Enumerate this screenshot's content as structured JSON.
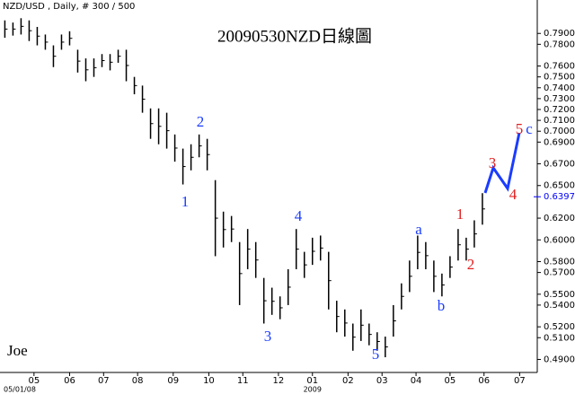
{
  "chart_data": {
    "type": "ohlc",
    "title": "20090530NZD日線圖",
    "subtitle": "NZD/USD , Daily, # 300 / 500",
    "author": "Joe",
    "x": [
      3,
      8,
      13,
      18,
      23,
      28,
      33,
      38,
      43,
      48,
      53,
      58,
      63,
      68,
      73,
      78,
      83,
      88,
      93,
      98,
      103,
      108,
      113,
      118,
      123,
      128,
      133,
      138,
      143,
      148,
      153,
      158,
      163,
      168,
      173,
      178,
      183,
      188,
      193,
      198,
      203,
      208,
      213,
      218,
      223,
      228,
      233,
      238,
      243,
      248,
      253,
      258,
      263,
      268,
      273,
      278,
      283,
      288,
      293,
      298
    ],
    "series": [
      {
        "name": "High",
        "color": "#000000",
        "values": [
          0.802,
          0.8,
          0.804,
          0.802,
          0.796,
          0.789,
          0.779,
          0.789,
          0.792,
          0.775,
          0.767,
          0.767,
          0.771,
          0.771,
          0.775,
          0.775,
          0.75,
          0.742,
          0.721,
          0.721,
          0.717,
          0.697,
          0.684,
          0.688,
          0.697,
          0.693,
          0.655,
          0.626,
          0.622,
          0.598,
          0.61,
          0.598,
          0.565,
          0.556,
          0.548,
          0.573,
          0.61,
          0.589,
          0.602,
          0.604,
          0.589,
          0.544,
          0.536,
          0.523,
          0.536,
          0.523,
          0.515,
          0.511,
          0.54,
          0.56,
          0.581,
          0.604,
          0.598,
          0.581,
          0.569,
          0.585,
          0.61,
          0.602,
          0.618,
          0.643
        ]
      },
      {
        "name": "Low",
        "color": "#000000",
        "values": [
          0.786,
          0.788,
          0.789,
          0.783,
          0.779,
          0.775,
          0.759,
          0.775,
          0.779,
          0.754,
          0.746,
          0.75,
          0.759,
          0.756,
          0.763,
          0.746,
          0.734,
          0.717,
          0.693,
          0.688,
          0.684,
          0.672,
          0.651,
          0.664,
          0.676,
          0.664,
          0.585,
          0.593,
          0.598,
          0.54,
          0.573,
          0.565,
          0.523,
          0.531,
          0.527,
          0.54,
          0.573,
          0.565,
          0.577,
          0.581,
          0.536,
          0.515,
          0.511,
          0.498,
          0.507,
          0.503,
          0.498,
          0.492,
          0.511,
          0.536,
          0.552,
          0.573,
          0.573,
          0.552,
          0.548,
          0.565,
          0.581,
          0.581,
          0.593,
          0.614
        ]
      }
    ],
    "ylim": [
      0.478,
      0.8125
    ],
    "yticks": [
      {
        "value": 0.79,
        "label": "0.7900"
      },
      {
        "value": 0.78,
        "label": "0.7800"
      },
      {
        "value": 0.76,
        "label": "0.7600"
      },
      {
        "value": 0.75,
        "label": "0.7500"
      },
      {
        "value": 0.74,
        "label": "0.7400"
      },
      {
        "value": 0.73,
        "label": "0.7300"
      },
      {
        "value": 0.72,
        "label": "0.7200"
      },
      {
        "value": 0.71,
        "label": "0.7100"
      },
      {
        "value": 0.7,
        "label": "0.7000"
      },
      {
        "value": 0.69,
        "label": "0.6900"
      },
      {
        "value": 0.67,
        "label": "0.6700"
      },
      {
        "value": 0.65,
        "label": "0.6500"
      },
      {
        "value": 0.62,
        "label": "0.6200"
      },
      {
        "value": 0.6,
        "label": "0.6000"
      },
      {
        "value": 0.58,
        "label": "0.5800"
      },
      {
        "value": 0.57,
        "label": "0.5700"
      },
      {
        "value": 0.55,
        "label": "0.5500"
      },
      {
        "value": 0.54,
        "label": "0.5400"
      },
      {
        "value": 0.52,
        "label": "0.5200"
      },
      {
        "value": 0.51,
        "label": "0.5100"
      },
      {
        "value": 0.49,
        "label": "0.4900"
      }
    ],
    "last_price": {
      "value": 0.6397,
      "label": "0.6397"
    },
    "xlim": [
      0,
      333
    ],
    "xticks": [
      {
        "value": 21,
        "label": "05"
      },
      {
        "value": 43,
        "label": "06"
      },
      {
        "value": 64,
        "label": "07"
      },
      {
        "value": 85,
        "label": "08"
      },
      {
        "value": 107,
        "label": "09"
      },
      {
        "value": 129,
        "label": "10"
      },
      {
        "value": 150,
        "label": "11"
      },
      {
        "value": 172,
        "label": "12"
      },
      {
        "value": 193,
        "label": "01"
      },
      {
        "value": 215,
        "label": "02"
      },
      {
        "value": 236,
        "label": "03"
      },
      {
        "value": 257,
        "label": "04"
      },
      {
        "value": 278,
        "label": "05"
      },
      {
        "value": 299,
        "label": "06"
      },
      {
        "value": 321,
        "label": "07"
      }
    ],
    "x_sublabels": [
      "05/01/08",
      "2009"
    ],
    "annotations": [
      "1",
      "2",
      "3",
      "4",
      "5",
      "a",
      "b",
      "1",
      "2",
      "3",
      "4",
      "5",
      "c"
    ]
  }
}
